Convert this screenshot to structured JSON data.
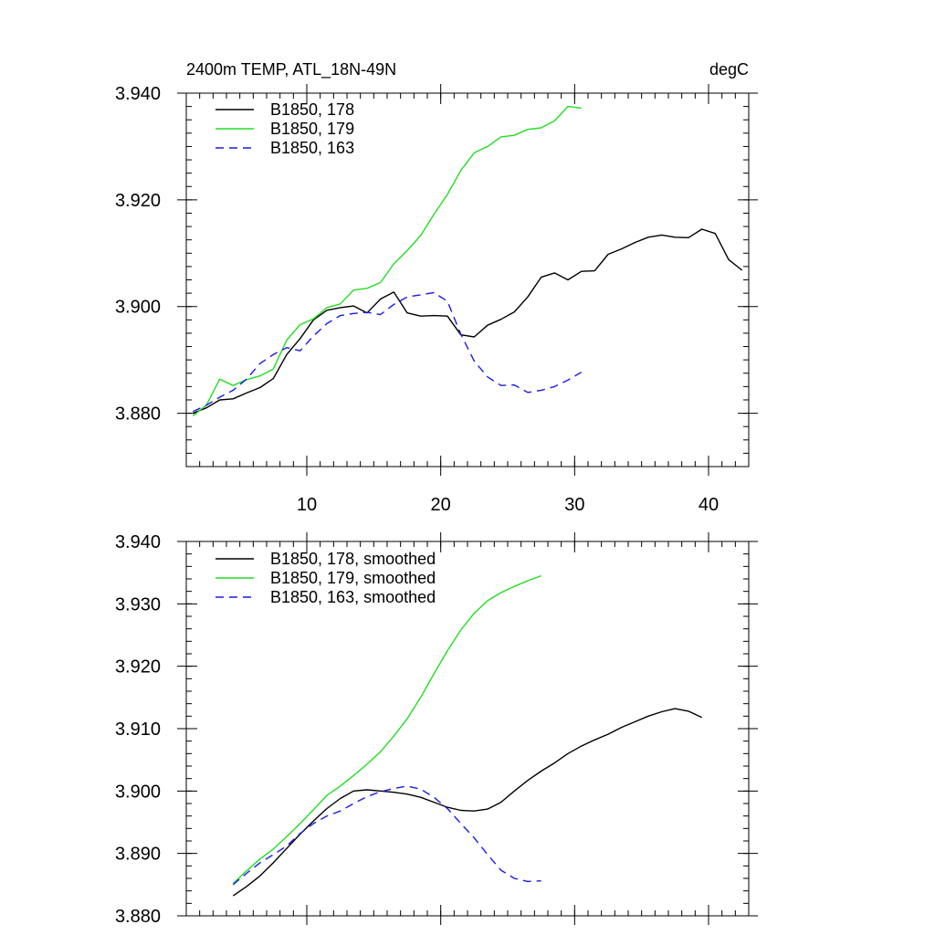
{
  "chart_data": [
    {
      "type": "line",
      "title_left": "2400m TEMP, ATL_18N-49N",
      "title_right": "degC",
      "xlim": [
        1,
        43
      ],
      "ylim": [
        3.87,
        3.94
      ],
      "xticks": [
        10,
        20,
        30,
        40
      ],
      "xtick_labels": [
        "10",
        "20",
        "30",
        "40"
      ],
      "yticks": [
        3.88,
        3.9,
        3.92,
        3.94
      ],
      "ytick_labels": [
        "3.880",
        "3.900",
        "3.920",
        "3.940"
      ],
      "legend_location": "top-left",
      "series": [
        {
          "name": "B1850, 178",
          "color": "#000000",
          "dash": "solid",
          "x": [
            1.5,
            2.5,
            3.5,
            4.5,
            5.5,
            6.5,
            7.5,
            8.5,
            9.5,
            10.5,
            11.5,
            12.5,
            13.5,
            14.5,
            15.5,
            16.5,
            17.5,
            18.5,
            19.5,
            20.5,
            21.5,
            22.5,
            23.5,
            24.5,
            25.5,
            26.5,
            27.5,
            28.5,
            29.5,
            30.5,
            31.5,
            32.5,
            33.5,
            34.5,
            35.5,
            36.5,
            37.5,
            38.5,
            39.5,
            40.5,
            41.5,
            42.5
          ],
          "y": [
            3.88,
            3.881,
            3.8825,
            3.8827,
            3.8838,
            3.8848,
            3.8865,
            3.891,
            3.894,
            3.8975,
            3.8993,
            3.8998,
            3.9001,
            3.8988,
            3.9014,
            3.9027,
            3.8988,
            3.8982,
            3.8983,
            3.8982,
            3.8947,
            3.8943,
            3.8965,
            3.8976,
            3.899,
            3.9018,
            3.9055,
            3.9063,
            3.905,
            3.9066,
            3.9067,
            3.9098,
            3.9108,
            3.912,
            3.913,
            3.9134,
            3.913,
            3.9129,
            3.9145,
            3.9137,
            3.9088,
            3.9068
          ]
        },
        {
          "name": "B1850, 179",
          "color": "#22dd22",
          "dash": "solid",
          "x": [
            1.5,
            2.5,
            3.5,
            4.5,
            5.5,
            6.5,
            7.5,
            8.5,
            9.5,
            10.5,
            11.5,
            12.5,
            13.5,
            14.5,
            15.5,
            16.5,
            17.5,
            18.5,
            19.5,
            20.5,
            21.5,
            22.5,
            23.5,
            24.5,
            25.5,
            26.5,
            27.5,
            28.5,
            29.5,
            30.5
          ],
          "y": [
            3.8795,
            3.8815,
            3.8864,
            3.8852,
            3.8863,
            3.887,
            3.8883,
            3.8937,
            3.8966,
            3.8977,
            3.8998,
            3.9005,
            3.9031,
            3.9034,
            3.9045,
            3.908,
            3.9105,
            3.9133,
            3.9173,
            3.921,
            3.9255,
            3.9288,
            3.93,
            3.9318,
            3.9321,
            3.9332,
            3.9335,
            3.9348,
            3.9375,
            3.9372
          ]
        },
        {
          "name": "B1850, 163",
          "color": "#1a1ae6",
          "dash": "dashed",
          "x": [
            1.5,
            2.5,
            3.5,
            4.5,
            5.5,
            6.5,
            7.5,
            8.5,
            9.5,
            10.5,
            11.5,
            12.5,
            13.5,
            14.5,
            15.5,
            16.5,
            17.5,
            18.5,
            19.5,
            20.5,
            21.5,
            22.5,
            23.5,
            24.5,
            25.5,
            26.5,
            27.5,
            28.5,
            29.5,
            30.5
          ],
          "y": [
            3.8803,
            3.8815,
            3.883,
            3.8843,
            3.8864,
            3.8893,
            3.891,
            3.8923,
            3.8917,
            3.8945,
            3.8968,
            3.8983,
            3.8987,
            3.8989,
            3.8985,
            3.9004,
            3.9018,
            3.9022,
            3.9026,
            3.901,
            3.8948,
            3.8898,
            3.8868,
            3.8852,
            3.8853,
            3.8839,
            3.8843,
            3.885,
            3.8862,
            3.8877
          ]
        }
      ]
    },
    {
      "type": "line",
      "xlim": [
        1,
        43
      ],
      "ylim": [
        3.88,
        3.94
      ],
      "xticks": [
        10,
        20,
        30,
        40
      ],
      "xtick_labels": [],
      "yticks": [
        3.88,
        3.89,
        3.9,
        3.91,
        3.92,
        3.93,
        3.94
      ],
      "ytick_labels": [
        "3.880",
        "3.890",
        "3.900",
        "3.910",
        "3.920",
        "3.930",
        "3.940"
      ],
      "legend_location": "top-left",
      "series": [
        {
          "name": "B1850, 178, smoothed",
          "color": "#000000",
          "dash": "solid",
          "x": [
            4.5,
            5.5,
            6.5,
            7.5,
            8.5,
            9.5,
            10.5,
            11.5,
            12.5,
            13.5,
            14.5,
            15.5,
            16.5,
            17.5,
            18.5,
            19.5,
            20.5,
            21.5,
            22.5,
            23.5,
            24.5,
            25.5,
            26.5,
            27.5,
            28.5,
            29.5,
            30.5,
            31.5,
            32.5,
            33.5,
            34.5,
            35.5,
            36.5,
            37.5,
            38.5,
            39.5
          ],
          "y": [
            3.8832,
            3.8847,
            3.8864,
            3.8885,
            3.8908,
            3.8931,
            3.8952,
            3.8972,
            3.8988,
            3.9,
            3.9002,
            3.9,
            3.8998,
            3.8995,
            3.899,
            3.8982,
            3.8974,
            3.8969,
            3.8968,
            3.8971,
            3.8982,
            3.9,
            3.9017,
            3.9032,
            3.9045,
            3.906,
            3.9072,
            3.9082,
            3.9091,
            3.9102,
            3.9111,
            3.912,
            3.9127,
            3.9132,
            3.9128,
            3.9118
          ]
        },
        {
          "name": "B1850, 179, smoothed",
          "color": "#22dd22",
          "dash": "solid",
          "x": [
            4.5,
            5.5,
            6.5,
            7.5,
            8.5,
            9.5,
            10.5,
            11.5,
            12.5,
            13.5,
            14.5,
            15.5,
            16.5,
            17.5,
            18.5,
            19.5,
            20.5,
            21.5,
            22.5,
            23.5,
            24.5,
            25.5,
            26.5,
            27.5
          ],
          "y": [
            3.8852,
            3.8872,
            3.8891,
            3.8907,
            3.8927,
            3.8948,
            3.897,
            3.8993,
            3.9008,
            3.9025,
            3.9043,
            3.9063,
            3.9088,
            3.9116,
            3.915,
            3.9188,
            3.9225,
            3.9258,
            3.9285,
            3.9305,
            3.9318,
            3.9328,
            3.9337,
            3.9345
          ]
        },
        {
          "name": "B1850, 163, smoothed",
          "color": "#1a1ae6",
          "dash": "dashed",
          "x": [
            4.5,
            5.5,
            6.5,
            7.5,
            8.5,
            9.5,
            10.5,
            11.5,
            12.5,
            13.5,
            14.5,
            15.5,
            16.5,
            17.5,
            18.5,
            19.5,
            20.5,
            21.5,
            22.5,
            23.5,
            24.5,
            25.5,
            26.5,
            27.5
          ],
          "y": [
            3.885,
            3.8868,
            3.8885,
            3.8898,
            3.8912,
            3.8932,
            3.8948,
            3.896,
            3.8968,
            3.898,
            3.8991,
            3.8999,
            3.9004,
            3.9008,
            3.9003,
            3.899,
            3.8972,
            3.8948,
            3.8925,
            3.8898,
            3.8873,
            3.886,
            3.8855,
            3.8856
          ]
        }
      ]
    }
  ]
}
